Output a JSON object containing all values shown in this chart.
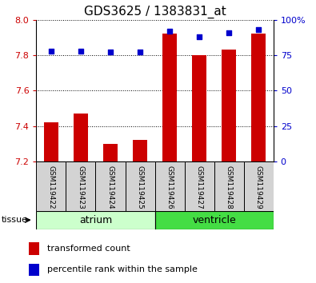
{
  "title": "GDS3625 / 1383831_at",
  "categories": [
    "GSM119422",
    "GSM119423",
    "GSM119424",
    "GSM119425",
    "GSM119426",
    "GSM119427",
    "GSM119428",
    "GSM119429"
  ],
  "bar_values": [
    7.42,
    7.47,
    7.3,
    7.32,
    7.92,
    7.8,
    7.83,
    7.92
  ],
  "bar_bottom": 7.2,
  "percentile_values": [
    78,
    78,
    77,
    77,
    92,
    88,
    91,
    93
  ],
  "ylim_left": [
    7.2,
    8.0
  ],
  "ylim_right": [
    0,
    100
  ],
  "yticks_left": [
    7.2,
    7.4,
    7.6,
    7.8,
    8.0
  ],
  "yticks_right": [
    0,
    25,
    50,
    75,
    100
  ],
  "bar_color": "#cc0000",
  "scatter_color": "#0000cc",
  "atrium_color": "#ccffcc",
  "ventricle_color": "#44dd44",
  "tissue_groups": [
    {
      "label": "atrium",
      "start": 0,
      "end": 3,
      "color": "#ccffcc"
    },
    {
      "label": "ventricle",
      "start": 4,
      "end": 7,
      "color": "#44dd44"
    }
  ],
  "legend_bar_label": "transformed count",
  "legend_scatter_label": "percentile rank within the sample",
  "tissue_label": "tissue",
  "tick_label_color_left": "#cc0000",
  "tick_label_color_right": "#0000cc",
  "label_fontsize": 8,
  "title_fontsize": 11
}
